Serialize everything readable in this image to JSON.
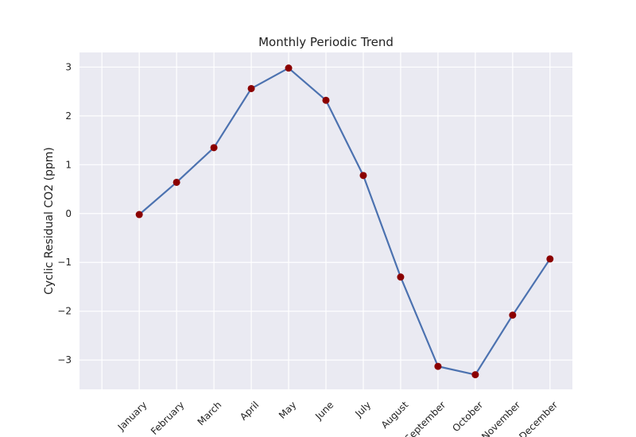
{
  "chart_data": {
    "type": "line",
    "title": "Monthly Periodic Trend",
    "xlabel": "",
    "ylabel": "Cyclic Residual CO2 (ppm)",
    "categories": [
      "January",
      "February",
      "March",
      "April",
      "May",
      "June",
      "July",
      "August",
      "September",
      "October",
      "November",
      "December"
    ],
    "values": [
      -0.02,
      0.64,
      1.35,
      2.56,
      2.98,
      2.32,
      0.78,
      -1.3,
      -3.13,
      -3.3,
      -2.08,
      -0.93
    ],
    "xlim": [
      -1.6,
      11.6
    ],
    "ylim": [
      -3.6,
      3.3
    ],
    "yticks": [
      -3,
      -2,
      -1,
      0,
      1,
      2,
      3
    ],
    "ytick_labels": [
      "−3",
      "−2",
      "−1",
      "0",
      "1",
      "2",
      "3"
    ],
    "extra_vertical_gridlines_at": [
      -1
    ],
    "grid": true,
    "line_color": "#4c72b0",
    "marker_color": "#8b0000",
    "background_color": "#eaeaf2"
  }
}
